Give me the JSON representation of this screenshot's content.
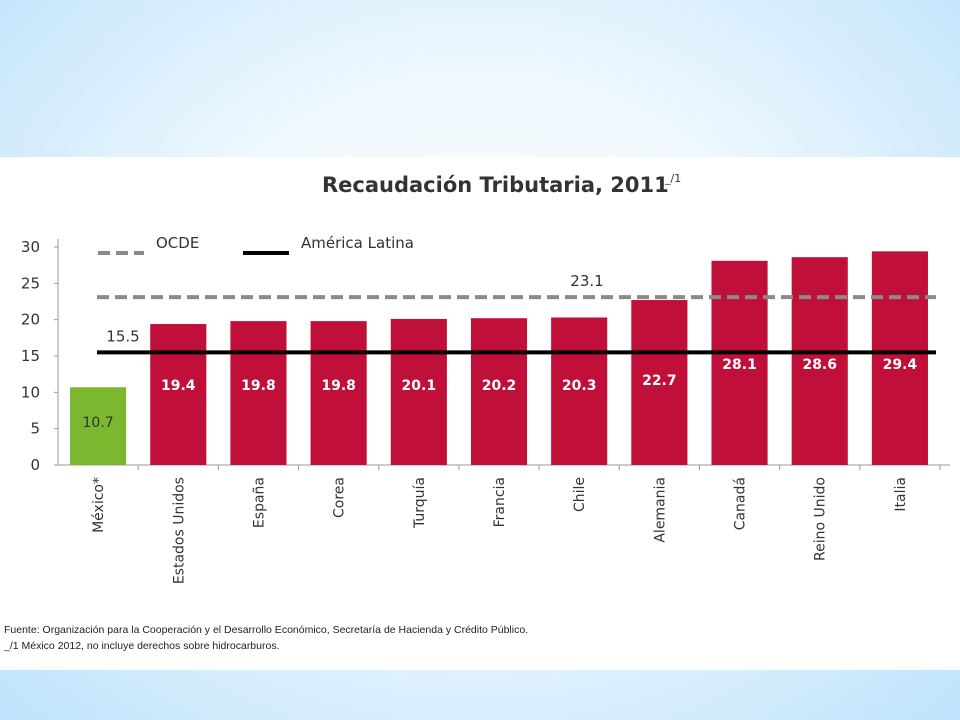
{
  "chart_data": {
    "type": "bar",
    "title": "Recaudación Tributaria, 2011",
    "title_superscript": "_/1",
    "categories": [
      "México*",
      "Estados Unidos",
      "España",
      "Corea",
      "Turquía",
      "Francia",
      "Chile",
      "Alemania",
      "Canadá",
      "Reino Unido",
      "Italia"
    ],
    "values": [
      10.7,
      19.4,
      19.8,
      19.8,
      20.1,
      20.2,
      20.3,
      22.7,
      28.1,
      28.6,
      29.4
    ],
    "value_labels": [
      "10.7",
      "19.4",
      "19.8",
      "19.8",
      "20.1",
      "20.2",
      "20.3",
      "22.7",
      "28.1",
      "28.6",
      "29.4"
    ],
    "highlight_index": 0,
    "ylim": [
      0,
      30
    ],
    "yticks": [
      "0",
      "5",
      "10",
      "15",
      "20",
      "25",
      "30"
    ],
    "reference_lines": [
      {
        "name": "OCDE",
        "value": 23.1,
        "label": "23.1",
        "style": "dashed",
        "color": "#8a8a8a"
      },
      {
        "name": "América Latina",
        "value": 15.5,
        "label": "15.5",
        "style": "solid",
        "color": "#000000"
      }
    ],
    "legend_position": "top-left",
    "grid": false,
    "colors": {
      "bar": "#c0103a",
      "highlight": "#7cb82f",
      "axis": "#999999"
    }
  },
  "footnotes": {
    "source": "Fuente: Organización para la Cooperación y el Desarrollo Económico, Secretaría de Hacienda y Crédito Público.",
    "note": "_/1  México 2012, no incluye derechos sobre hidrocarburos."
  }
}
